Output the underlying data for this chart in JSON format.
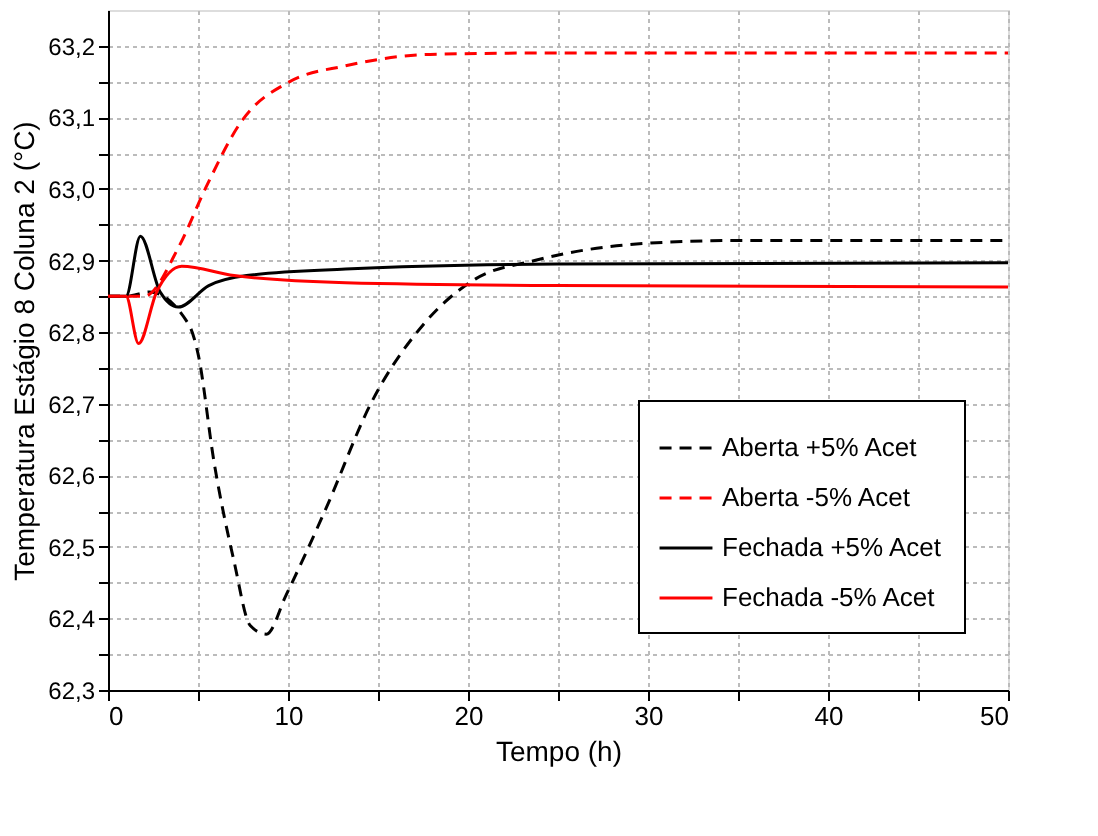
{
  "chart_data": {
    "type": "line",
    "xlabel": "Tempo (h)",
    "ylabel": "Temperatura Estágio 8 Coluna 2 (°C)",
    "xlim": [
      0,
      50
    ],
    "ylim": [
      62.3,
      63.25
    ],
    "xticks": [
      0,
      {
        "value": 5,
        "label": null
      },
      10,
      {
        "value": 15,
        "label": null
      },
      20,
      {
        "value": 25,
        "label": null
      },
      30,
      {
        "value": 35,
        "label": null
      },
      40,
      {
        "value": 45,
        "label": null
      },
      50
    ],
    "yticks": [
      {
        "value": 62.3,
        "label": "62,3"
      },
      {
        "value": 62.35,
        "label": null
      },
      {
        "value": 62.4,
        "label": "62,4"
      },
      {
        "value": 62.45,
        "label": null
      },
      {
        "value": 62.5,
        "label": "62,5"
      },
      {
        "value": 62.55,
        "label": null
      },
      {
        "value": 62.6,
        "label": "62,6"
      },
      {
        "value": 62.65,
        "label": null
      },
      {
        "value": 62.7,
        "label": "62,7"
      },
      {
        "value": 62.75,
        "label": null
      },
      {
        "value": 62.8,
        "label": "62,8"
      },
      {
        "value": 62.85,
        "label": null
      },
      {
        "value": 62.9,
        "label": "62,9"
      },
      {
        "value": 62.95,
        "label": null
      },
      {
        "value": 63.0,
        "label": "63,0"
      },
      {
        "value": 63.05,
        "label": null
      },
      {
        "value": 63.1,
        "label": "63,1"
      },
      {
        "value": 63.15,
        "label": null
      },
      {
        "value": 63.2,
        "label": "63,2"
      }
    ],
    "grid": true,
    "legend": "right",
    "series": [
      {
        "name": "Aberta +5% Acet",
        "color": "#000000",
        "line_style": "dashed",
        "x": [
          0,
          1,
          2.3,
          4.5,
          5.0,
          5.9,
          7.0,
          7.9,
          8.8,
          9.9,
          12.1,
          14.6,
          17.5,
          20.4,
          23.7,
          29.9,
          35.3,
          50
        ],
        "values": [
          62.85,
          62.85,
          62.856,
          62.81,
          62.77,
          62.617,
          62.48,
          62.39,
          62.378,
          62.433,
          62.553,
          62.7,
          62.81,
          62.874,
          62.9,
          62.924,
          62.928,
          62.928
        ]
      },
      {
        "name": "Aberta -5% Acet",
        "color": "#ff0000",
        "line_style": "dashed",
        "x": [
          0,
          2,
          3.95,
          5.4,
          7.4,
          10.1,
          13.2,
          17.9,
          25,
          50
        ],
        "values": [
          62.85,
          62.85,
          62.92,
          63.0,
          63.094,
          63.15,
          63.172,
          63.188,
          63.19,
          63.19
        ]
      },
      {
        "name": "Fechada +5% Acet",
        "color": "#000000",
        "line_style": "solid",
        "x": [
          0,
          1,
          1.8,
          2.9,
          3.9,
          5.6,
          7.7,
          13.2,
          25,
          50
        ],
        "values": [
          62.85,
          62.85,
          62.934,
          62.856,
          62.835,
          62.865,
          62.879,
          62.888,
          62.895,
          62.897
        ]
      },
      {
        "name": "Fechada -5% Acet",
        "color": "#ff0000",
        "line_style": "solid",
        "x": [
          0,
          1,
          1.7,
          2.7,
          4.1,
          7.0,
          13.2,
          25,
          50
        ],
        "values": [
          62.85,
          62.85,
          62.784,
          62.856,
          62.892,
          62.879,
          62.869,
          62.865,
          62.863
        ]
      }
    ]
  }
}
